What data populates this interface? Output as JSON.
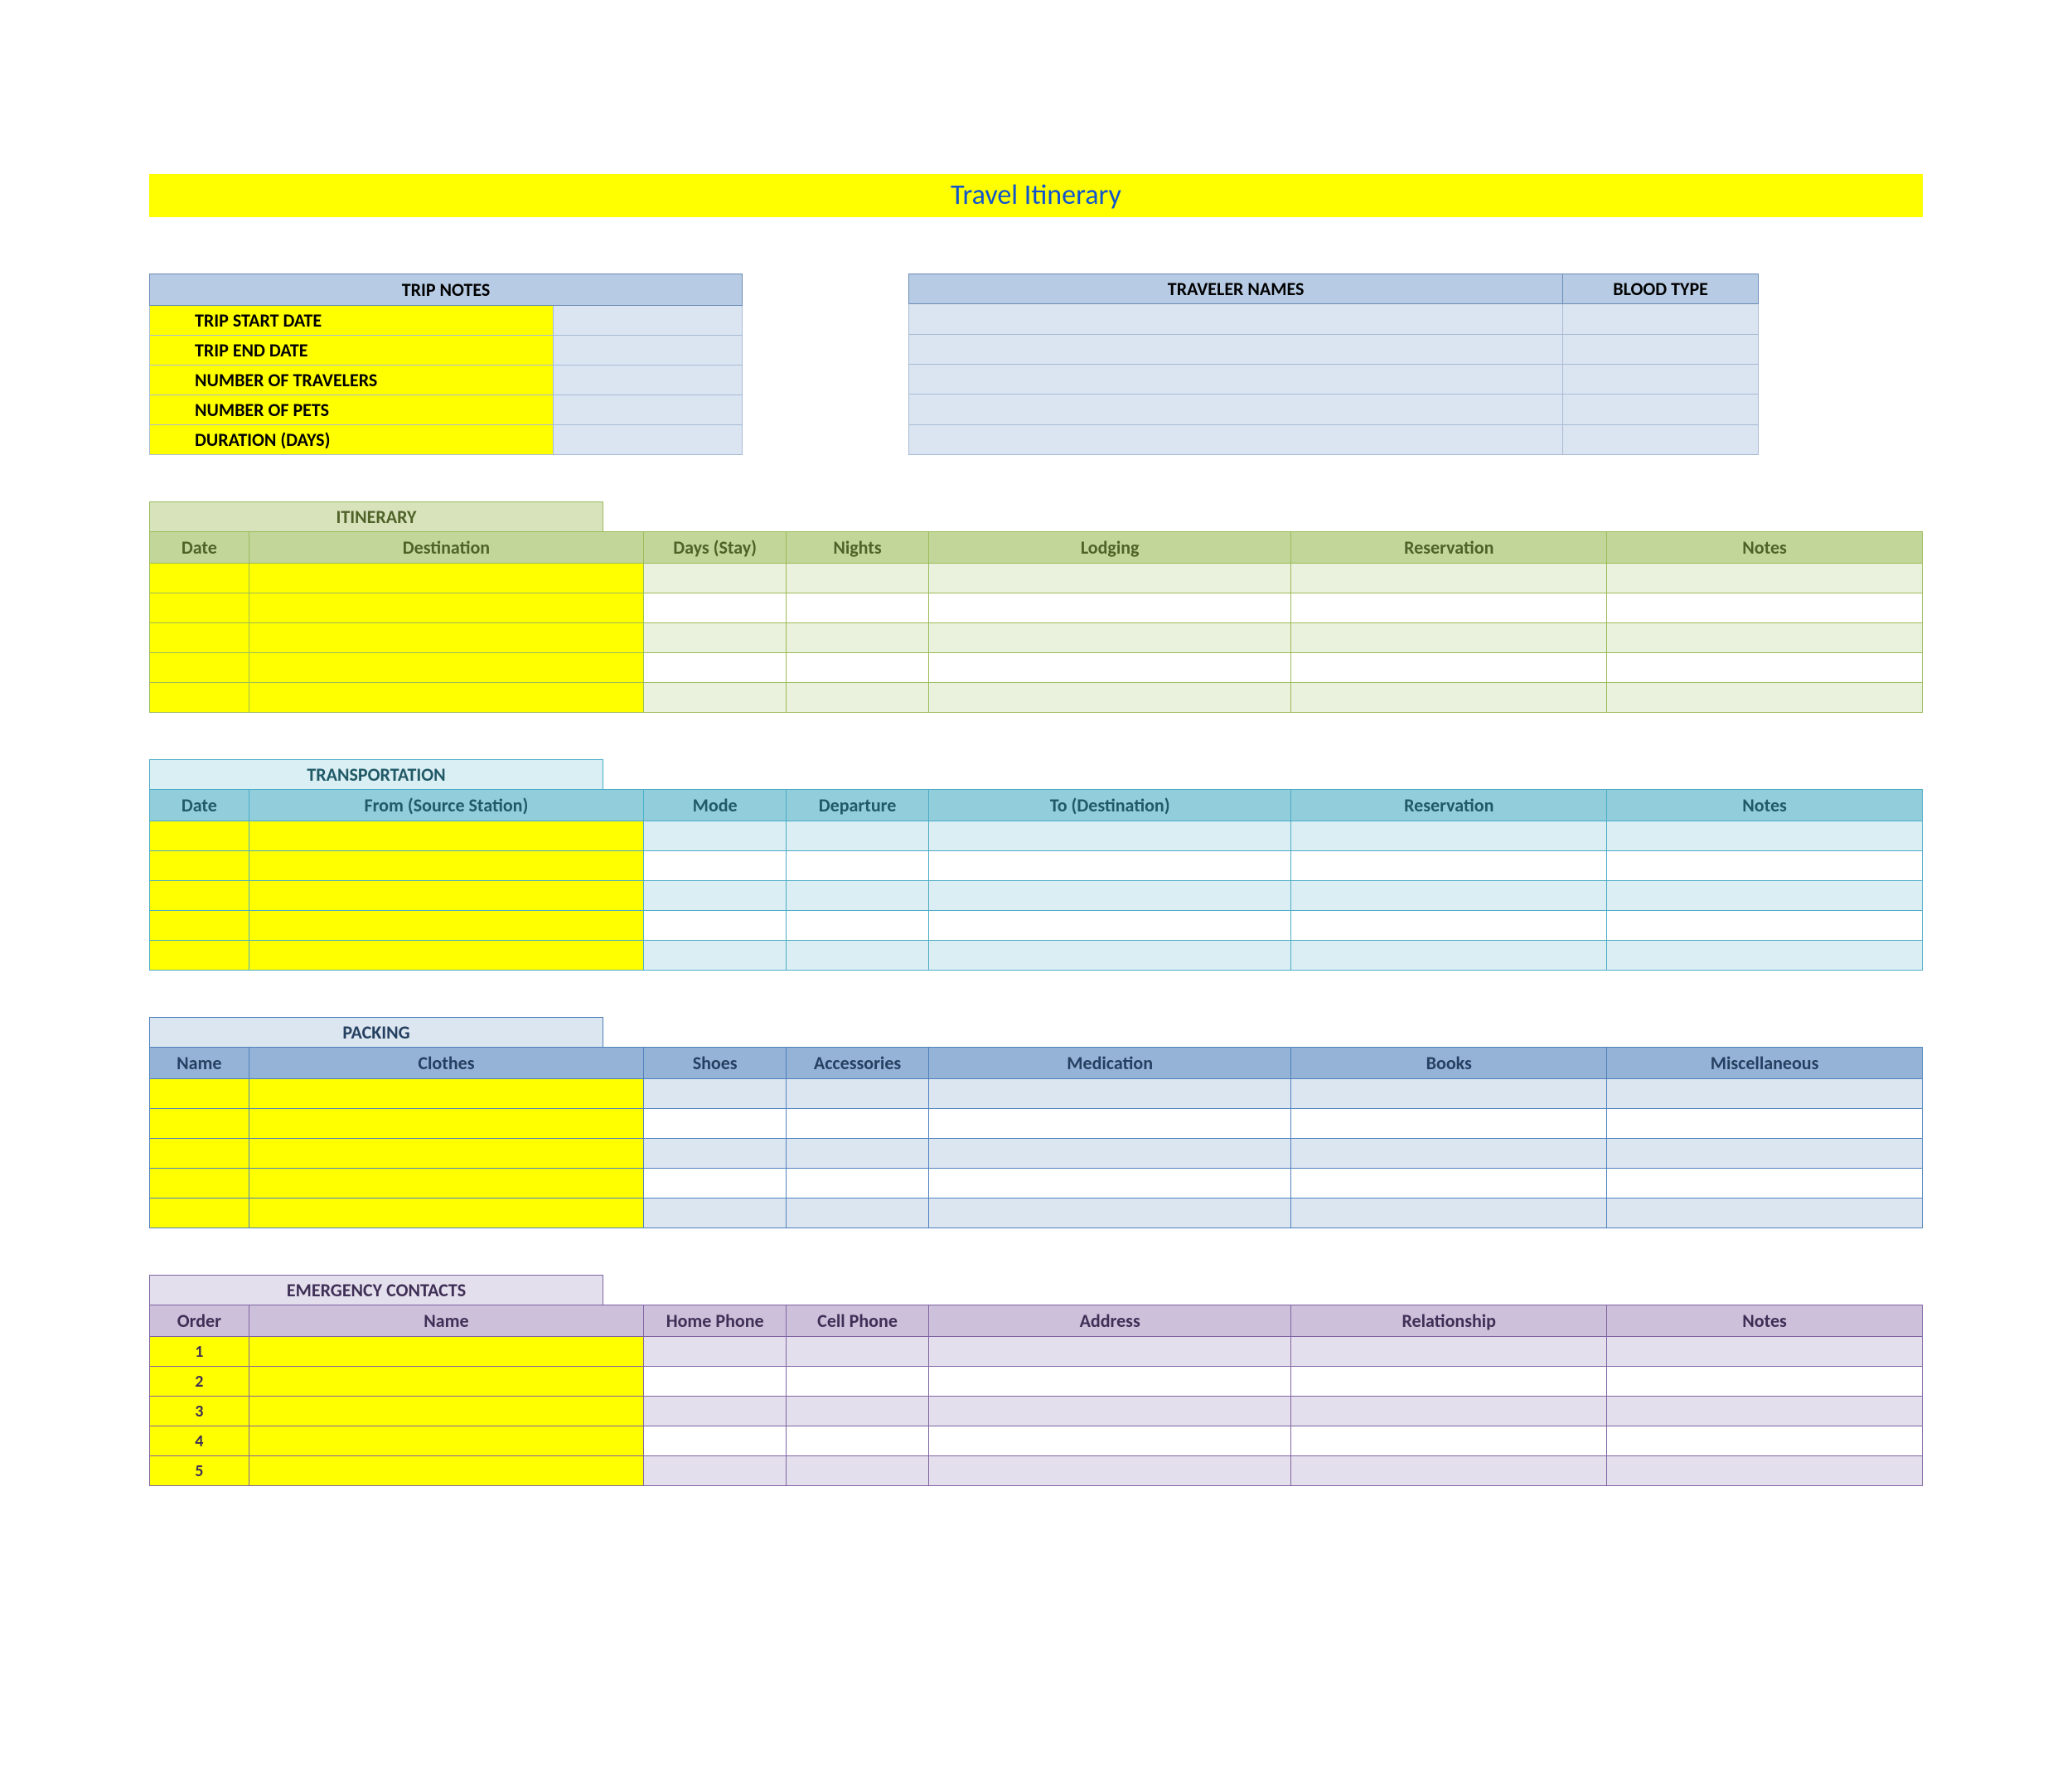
{
  "title": "Travel Itinerary",
  "colors": {
    "yellow": "#ffff00",
    "title_text": "#1155cc",
    "blue_hdr_bg": "#b7cce4",
    "blue_hdr_border": "#6b8bb6",
    "blue_row_bg": "#dbe5f1",
    "blue_row_border": "#a8bbd5",
    "olive_title_bg": "#d8e3bc",
    "olive_hdr_bg": "#c2d69a",
    "olive_border": "#9bbb59",
    "olive_row_bg": "#eaf1dc",
    "olive_text": "#4f6228",
    "teal_title_bg": "#d9eff3",
    "teal_hdr_bg": "#92cddc",
    "teal_border": "#4bacc6",
    "teal_row_bg": "#dbeef3",
    "teal_text": "#215967",
    "steel_title_bg": "#dce6f1",
    "steel_hdr_bg": "#95b3d7",
    "steel_border": "#4f81bd",
    "steel_row_bg": "#dce6f1",
    "steel_text": "#254061",
    "purple_title_bg": "#e4dfec",
    "purple_hdr_bg": "#ccc0da",
    "purple_border": "#8064a2",
    "purple_row_bg": "#e4dfec",
    "purple_text": "#3f2f56"
  },
  "trip_notes": {
    "header": "TRIP NOTES",
    "rows": [
      {
        "label": "TRIP START DATE",
        "value": ""
      },
      {
        "label": "TRIP END DATE",
        "value": ""
      },
      {
        "label": "NUMBER OF TRAVELERS",
        "value": ""
      },
      {
        "label": "NUMBER OF PETS",
        "value": ""
      },
      {
        "label": "DURATION (DAYS)",
        "value": ""
      }
    ]
  },
  "travelers": {
    "header_names": "TRAVELER NAMES",
    "header_blood": "BLOOD TYPE",
    "rows": [
      {
        "name": "",
        "blood": ""
      },
      {
        "name": "",
        "blood": ""
      },
      {
        "name": "",
        "blood": ""
      },
      {
        "name": "",
        "blood": ""
      },
      {
        "name": "",
        "blood": ""
      }
    ]
  },
  "itinerary": {
    "title": "ITINERARY",
    "columns": [
      "Date",
      "Destination",
      "Days (Stay)",
      "Nights",
      "Lodging",
      "Reservation",
      "Notes"
    ],
    "row_count": 5
  },
  "transportation": {
    "title": "TRANSPORTATION",
    "columns": [
      "Date",
      "From (Source Station)",
      "Mode",
      "Departure",
      "To (Destination)",
      "Reservation",
      "Notes"
    ],
    "row_count": 5
  },
  "packing": {
    "title": "PACKING",
    "columns": [
      "Name",
      "Clothes",
      "Shoes",
      "Accessories",
      "Medication",
      "Books",
      "Miscellaneous"
    ],
    "row_count": 5
  },
  "emergency": {
    "title": "EMERGENCY CONTACTS",
    "columns": [
      "Order",
      "Name",
      "Home Phone",
      "Cell Phone",
      "Address",
      "Relationship",
      "Notes"
    ],
    "rows": [
      {
        "order": "1"
      },
      {
        "order": "2"
      },
      {
        "order": "3"
      },
      {
        "order": "4"
      },
      {
        "order": "5"
      }
    ]
  }
}
